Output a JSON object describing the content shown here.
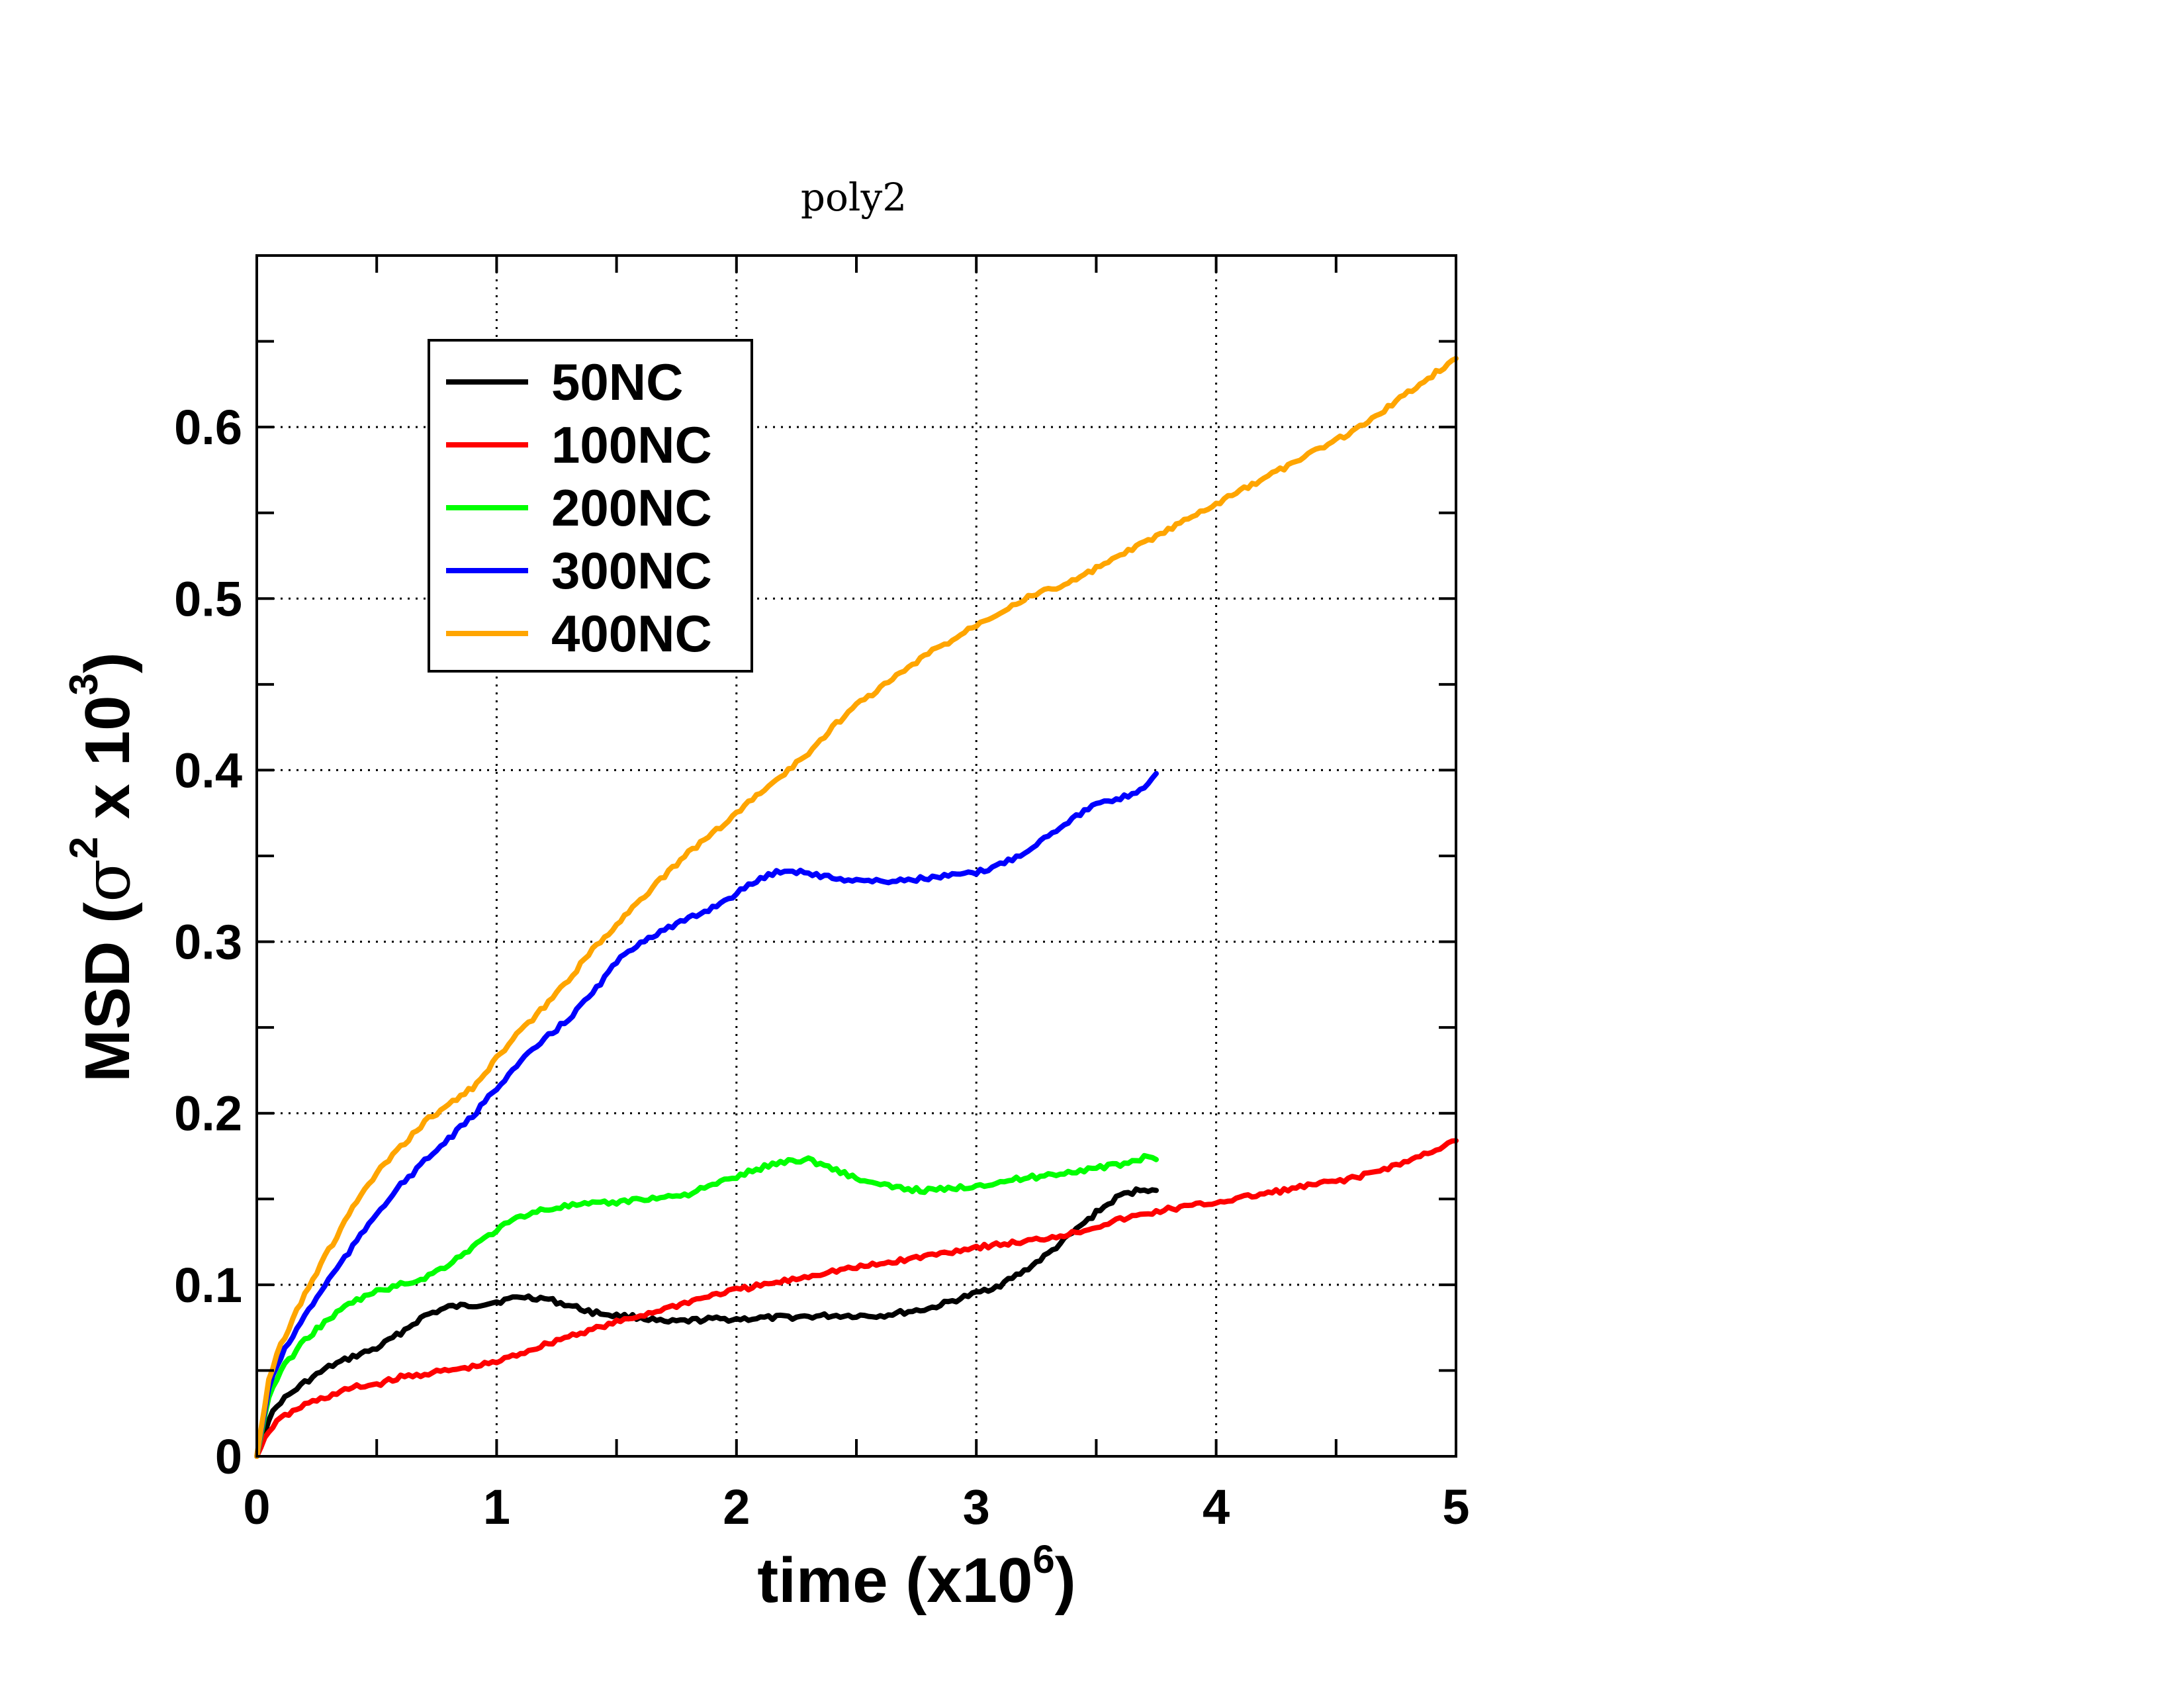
{
  "chart_data": {
    "type": "line",
    "title": "poly2",
    "xlabel": {
      "prefix": "time (x10",
      "sup": "6",
      "suffix": ")"
    },
    "ylabel": {
      "prefix": "MSD (",
      "symbol": "σ",
      "sup1": "2",
      "middle": " x 10",
      "sup2": "3",
      "suffix": ")"
    },
    "xlim": [
      0,
      5
    ],
    "ylim": [
      0,
      0.7
    ],
    "x_ticks": [
      "0",
      "1",
      "2",
      "3",
      "4",
      "5"
    ],
    "y_ticks": [
      "0",
      "0.1",
      "0.2",
      "0.3",
      "0.4",
      "0.5",
      "0.6"
    ],
    "grid": true,
    "legend_position": "top-left",
    "series": [
      {
        "name": "50NC",
        "color": "#000000",
        "points": [
          [
            0,
            0
          ],
          [
            0.05,
            0.022
          ],
          [
            0.1,
            0.032
          ],
          [
            0.2,
            0.043
          ],
          [
            0.3,
            0.052
          ],
          [
            0.4,
            0.058
          ],
          [
            0.5,
            0.063
          ],
          [
            0.6,
            0.072
          ],
          [
            0.7,
            0.082
          ],
          [
            0.8,
            0.087
          ],
          [
            0.9,
            0.088
          ],
          [
            1.0,
            0.09
          ],
          [
            1.1,
            0.093
          ],
          [
            1.2,
            0.092
          ],
          [
            1.3,
            0.088
          ],
          [
            1.4,
            0.084
          ],
          [
            1.5,
            0.082
          ],
          [
            1.6,
            0.081
          ],
          [
            1.7,
            0.078
          ],
          [
            1.8,
            0.079
          ],
          [
            1.9,
            0.08
          ],
          [
            2.0,
            0.08
          ],
          [
            2.2,
            0.081
          ],
          [
            2.4,
            0.082
          ],
          [
            2.6,
            0.082
          ],
          [
            2.8,
            0.086
          ],
          [
            3.0,
            0.095
          ],
          [
            3.1,
            0.1
          ],
          [
            3.2,
            0.108
          ],
          [
            3.3,
            0.118
          ],
          [
            3.4,
            0.13
          ],
          [
            3.5,
            0.142
          ],
          [
            3.6,
            0.152
          ],
          [
            3.7,
            0.156
          ],
          [
            3.75,
            0.155
          ]
        ]
      },
      {
        "name": "100NC",
        "color": "#ff0000",
        "points": [
          [
            0,
            0
          ],
          [
            0.05,
            0.015
          ],
          [
            0.1,
            0.022
          ],
          [
            0.2,
            0.03
          ],
          [
            0.3,
            0.035
          ],
          [
            0.4,
            0.04
          ],
          [
            0.5,
            0.042
          ],
          [
            0.6,
            0.046
          ],
          [
            0.7,
            0.048
          ],
          [
            0.8,
            0.05
          ],
          [
            0.9,
            0.052
          ],
          [
            1.0,
            0.055
          ],
          [
            1.1,
            0.06
          ],
          [
            1.2,
            0.065
          ],
          [
            1.3,
            0.07
          ],
          [
            1.4,
            0.074
          ],
          [
            1.5,
            0.078
          ],
          [
            1.6,
            0.082
          ],
          [
            1.7,
            0.086
          ],
          [
            1.8,
            0.09
          ],
          [
            1.9,
            0.094
          ],
          [
            2.0,
            0.097
          ],
          [
            2.2,
            0.102
          ],
          [
            2.4,
            0.108
          ],
          [
            2.6,
            0.112
          ],
          [
            2.8,
            0.117
          ],
          [
            3.0,
            0.122
          ],
          [
            3.2,
            0.125
          ],
          [
            3.4,
            0.13
          ],
          [
            3.6,
            0.138
          ],
          [
            3.8,
            0.144
          ],
          [
            4.0,
            0.148
          ],
          [
            4.2,
            0.153
          ],
          [
            4.4,
            0.158
          ],
          [
            4.6,
            0.163
          ],
          [
            4.8,
            0.172
          ],
          [
            5.0,
            0.184
          ]
        ]
      },
      {
        "name": "200NC",
        "color": "#00ff00",
        "points": [
          [
            0,
            0
          ],
          [
            0.05,
            0.035
          ],
          [
            0.1,
            0.05
          ],
          [
            0.2,
            0.068
          ],
          [
            0.3,
            0.08
          ],
          [
            0.4,
            0.09
          ],
          [
            0.5,
            0.096
          ],
          [
            0.6,
            0.1
          ],
          [
            0.7,
            0.104
          ],
          [
            0.8,
            0.112
          ],
          [
            0.9,
            0.122
          ],
          [
            1.0,
            0.132
          ],
          [
            1.1,
            0.14
          ],
          [
            1.2,
            0.144
          ],
          [
            1.3,
            0.146
          ],
          [
            1.4,
            0.147
          ],
          [
            1.5,
            0.148
          ],
          [
            1.6,
            0.15
          ],
          [
            1.7,
            0.151
          ],
          [
            1.8,
            0.153
          ],
          [
            1.9,
            0.158
          ],
          [
            2.0,
            0.163
          ],
          [
            2.1,
            0.168
          ],
          [
            2.2,
            0.172
          ],
          [
            2.3,
            0.173
          ],
          [
            2.4,
            0.168
          ],
          [
            2.5,
            0.162
          ],
          [
            2.6,
            0.158
          ],
          [
            2.7,
            0.156
          ],
          [
            2.8,
            0.155
          ],
          [
            2.9,
            0.156
          ],
          [
            3.0,
            0.158
          ],
          [
            3.2,
            0.162
          ],
          [
            3.4,
            0.166
          ],
          [
            3.6,
            0.17
          ],
          [
            3.7,
            0.174
          ],
          [
            3.75,
            0.173
          ]
        ]
      },
      {
        "name": "300NC",
        "color": "#0000ff",
        "points": [
          [
            0,
            0
          ],
          [
            0.05,
            0.04
          ],
          [
            0.1,
            0.058
          ],
          [
            0.2,
            0.082
          ],
          [
            0.3,
            0.103
          ],
          [
            0.4,
            0.122
          ],
          [
            0.5,
            0.142
          ],
          [
            0.6,
            0.158
          ],
          [
            0.7,
            0.172
          ],
          [
            0.8,
            0.185
          ],
          [
            0.9,
            0.198
          ],
          [
            1.0,
            0.215
          ],
          [
            1.1,
            0.23
          ],
          [
            1.2,
            0.243
          ],
          [
            1.3,
            0.255
          ],
          [
            1.4,
            0.27
          ],
          [
            1.5,
            0.288
          ],
          [
            1.6,
            0.3
          ],
          [
            1.7,
            0.307
          ],
          [
            1.8,
            0.313
          ],
          [
            1.9,
            0.32
          ],
          [
            2.0,
            0.328
          ],
          [
            2.1,
            0.337
          ],
          [
            2.2,
            0.342
          ],
          [
            2.3,
            0.34
          ],
          [
            2.4,
            0.337
          ],
          [
            2.6,
            0.335
          ],
          [
            2.8,
            0.337
          ],
          [
            3.0,
            0.34
          ],
          [
            3.1,
            0.345
          ],
          [
            3.2,
            0.352
          ],
          [
            3.3,
            0.362
          ],
          [
            3.4,
            0.372
          ],
          [
            3.5,
            0.38
          ],
          [
            3.6,
            0.383
          ],
          [
            3.7,
            0.39
          ],
          [
            3.75,
            0.398
          ]
        ]
      },
      {
        "name": "400NC",
        "color": "#ffa500",
        "points": [
          [
            0,
            0
          ],
          [
            0.05,
            0.045
          ],
          [
            0.1,
            0.065
          ],
          [
            0.2,
            0.095
          ],
          [
            0.3,
            0.12
          ],
          [
            0.4,
            0.145
          ],
          [
            0.5,
            0.165
          ],
          [
            0.6,
            0.18
          ],
          [
            0.7,
            0.195
          ],
          [
            0.8,
            0.205
          ],
          [
            0.9,
            0.215
          ],
          [
            1.0,
            0.232
          ],
          [
            1.1,
            0.248
          ],
          [
            1.2,
            0.262
          ],
          [
            1.3,
            0.278
          ],
          [
            1.4,
            0.295
          ],
          [
            1.5,
            0.31
          ],
          [
            1.6,
            0.325
          ],
          [
            1.7,
            0.338
          ],
          [
            1.8,
            0.352
          ],
          [
            1.9,
            0.363
          ],
          [
            2.0,
            0.375
          ],
          [
            2.1,
            0.387
          ],
          [
            2.2,
            0.398
          ],
          [
            2.3,
            0.41
          ],
          [
            2.4,
            0.425
          ],
          [
            2.5,
            0.438
          ],
          [
            2.6,
            0.448
          ],
          [
            2.7,
            0.458
          ],
          [
            2.8,
            0.468
          ],
          [
            2.9,
            0.476
          ],
          [
            3.0,
            0.485
          ],
          [
            3.2,
            0.5
          ],
          [
            3.4,
            0.51
          ],
          [
            3.6,
            0.525
          ],
          [
            3.8,
            0.54
          ],
          [
            4.0,
            0.555
          ],
          [
            4.2,
            0.57
          ],
          [
            4.4,
            0.585
          ],
          [
            4.6,
            0.6
          ],
          [
            4.8,
            0.62
          ],
          [
            5.0,
            0.64
          ]
        ]
      }
    ]
  }
}
